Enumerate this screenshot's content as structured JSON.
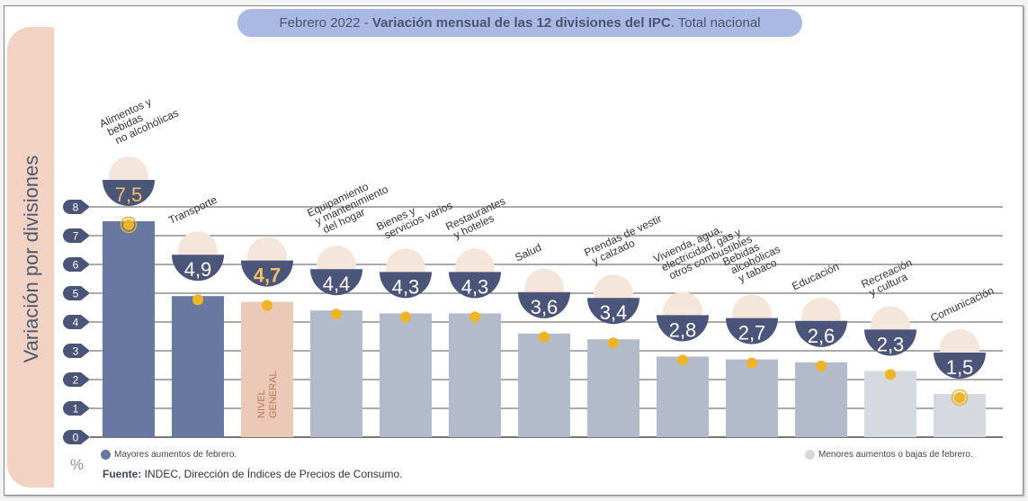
{
  "title": {
    "prefix": "Febrero 2022 - ",
    "bold": "Variación mensual de las 12 divisiones del IPC",
    "suffix": ". Total nacional"
  },
  "ylabel": "Variación por divisiones",
  "unit": "%",
  "legend": {
    "high": "Mayores aumentos de febrero.",
    "low": "Menores aumentos o bajas de febrero."
  },
  "source": {
    "label": "Fuente:",
    "text": " INDEC, Dirección de Índices de Precios de Consumo."
  },
  "colors": {
    "high": "#6878a0",
    "general": "#ecc8b6",
    "mid": "#b3bbcb",
    "low": "#d6d9df",
    "badge": "#4b5479",
    "dot": "#eeb422",
    "grid": "#777777"
  },
  "chart_data": {
    "type": "bar",
    "ylim": [
      0,
      8
    ],
    "yticks": [
      "0",
      "1",
      "2",
      "3",
      "4",
      "5",
      "6",
      "7",
      "8"
    ],
    "grid": true,
    "bars": [
      {
        "label": [
          "Alimentos y",
          "bebidas",
          "no alcohólicas"
        ],
        "value": 7.5,
        "display": "7,5",
        "group": "high",
        "icon": "food-basket-icon"
      },
      {
        "label": [
          "Transporte"
        ],
        "value": 4.9,
        "display": "4,9",
        "group": "high",
        "icon": "bus-sube-icon"
      },
      {
        "label": [
          "NIVEL",
          "GENERAL"
        ],
        "value": 4.7,
        "display": "4,7",
        "group": "general",
        "icon": "shopping-bag-icon"
      },
      {
        "label": [
          "Equipamiento",
          "y mantenimiento",
          "del hogar"
        ],
        "value": 4.4,
        "display": "4,4",
        "group": "mid",
        "icon": "washing-machine-icon"
      },
      {
        "label": [
          "Bienes y",
          "servicios varios"
        ],
        "value": 4.3,
        "display": "4,3",
        "group": "mid",
        "icon": "comb-scissors-icon"
      },
      {
        "label": [
          "Restaurantes",
          "y hoteles"
        ],
        "value": 4.3,
        "display": "4,3",
        "group": "mid",
        "icon": "plate-cutlery-icon"
      },
      {
        "label": [
          "Salud"
        ],
        "value": 3.6,
        "display": "3,6",
        "group": "mid",
        "icon": "first-aid-icon"
      },
      {
        "label": [
          "Prendas de vestir",
          "y calzado"
        ],
        "value": 3.4,
        "display": "3,4",
        "group": "mid",
        "icon": "clothes-icon"
      },
      {
        "label": [
          "Vivienda, agua,",
          "electricidad, gas y",
          "otros combustibles"
        ],
        "value": 2.8,
        "display": "2,8",
        "group": "mid",
        "icon": "lightbulb-icon"
      },
      {
        "label": [
          "Bebidas",
          "alcohólicas",
          "y tabaco"
        ],
        "value": 2.7,
        "display": "2,7",
        "group": "mid",
        "icon": "bottle-icon"
      },
      {
        "label": [
          "Educación"
        ],
        "value": 2.6,
        "display": "2,6",
        "group": "mid",
        "icon": "book-icon"
      },
      {
        "label": [
          "Recreación",
          "y cultura"
        ],
        "value": 2.3,
        "display": "2,3",
        "group": "low",
        "icon": "beach-umbrella-icon"
      },
      {
        "label": [
          "Comunicación"
        ],
        "value": 1.5,
        "display": "1,5",
        "group": "low",
        "icon": "phone-icon"
      }
    ]
  }
}
